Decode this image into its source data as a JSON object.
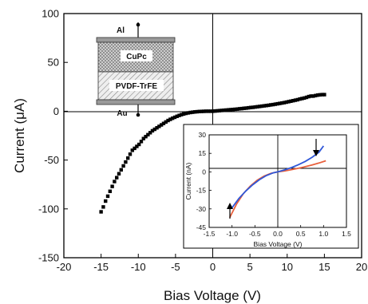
{
  "chart_data": [
    {
      "type": "scatter",
      "xlabel": "Bias Voltage (V)",
      "ylabel": "Current (μA)",
      "xlim": [
        -20,
        20
      ],
      "ylim": [
        -150,
        100
      ],
      "xticks": [
        "-20",
        "-15",
        "-10",
        "-5",
        "0",
        "5",
        "10",
        "15",
        "20"
      ],
      "yticks": [
        "100",
        "50",
        "0",
        "-50",
        "-100",
        "-150"
      ],
      "series": [
        {
          "marker": "square",
          "color": "#000000",
          "points": [
            [
              -15,
              -103
            ],
            [
              -14.7,
              -98
            ],
            [
              -14.4,
              -92
            ],
            [
              -14.1,
              -87
            ],
            [
              -13.8,
              -82
            ],
            [
              -13.5,
              -77
            ],
            [
              -13.2,
              -72
            ],
            [
              -12.9,
              -68
            ],
            [
              -12.6,
              -64
            ],
            [
              -12.3,
              -60
            ],
            [
              -12,
              -56
            ],
            [
              -11.7,
              -52
            ],
            [
              -11.4,
              -48
            ],
            [
              -11.1,
              -44
            ],
            [
              -10.8,
              -40
            ],
            [
              -10.5,
              -38
            ],
            [
              -10.2,
              -36
            ],
            [
              -9.9,
              -34
            ],
            [
              -9.6,
              -31
            ],
            [
              -9.3,
              -28
            ],
            [
              -9,
              -26
            ],
            [
              -8.7,
              -24
            ],
            [
              -8.4,
              -22
            ],
            [
              -8.1,
              -20
            ],
            [
              -7.8,
              -18.5
            ],
            [
              -7.5,
              -17
            ],
            [
              -7.2,
              -15.5
            ],
            [
              -6.9,
              -14
            ],
            [
              -6.6,
              -12.5
            ],
            [
              -6.3,
              -11
            ],
            [
              -6,
              -9.5
            ],
            [
              -5.7,
              -8.3
            ],
            [
              -5.4,
              -7.2
            ],
            [
              -5.1,
              -6.2
            ],
            [
              -4.8,
              -5.2
            ],
            [
              -4.5,
              -4.3
            ],
            [
              -4.2,
              -3.5
            ],
            [
              -3.9,
              -2.8
            ],
            [
              -3.6,
              -2.2
            ],
            [
              -3.3,
              -1.7
            ],
            [
              -3,
              -1.3
            ],
            [
              -2.7,
              -1
            ],
            [
              -2.4,
              -0.7
            ],
            [
              -2.1,
              -0.5
            ],
            [
              -1.8,
              -0.3
            ],
            [
              -1.5,
              -0.2
            ],
            [
              -1.2,
              -0.1
            ],
            [
              -0.9,
              0
            ],
            [
              -0.6,
              0
            ],
            [
              -0.3,
              0
            ],
            [
              0,
              0
            ],
            [
              0.3,
              0.2
            ],
            [
              0.6,
              0.4
            ],
            [
              0.9,
              0.6
            ],
            [
              1.2,
              0.8
            ],
            [
              1.5,
              1
            ],
            [
              1.8,
              1.2
            ],
            [
              2.1,
              1.4
            ],
            [
              2.4,
              1.6
            ],
            [
              2.7,
              1.8
            ],
            [
              3,
              2
            ],
            [
              3.3,
              2.2
            ],
            [
              3.6,
              2.5
            ],
            [
              3.9,
              2.7
            ],
            [
              4.2,
              3
            ],
            [
              4.5,
              3.2
            ],
            [
              4.8,
              3.5
            ],
            [
              5.1,
              3.8
            ],
            [
              5.4,
              4
            ],
            [
              5.7,
              4.3
            ],
            [
              6,
              4.6
            ],
            [
              6.3,
              4.9
            ],
            [
              6.6,
              5.2
            ],
            [
              6.9,
              5.5
            ],
            [
              7.2,
              5.8
            ],
            [
              7.5,
              6.1
            ],
            [
              7.8,
              6.5
            ],
            [
              8.1,
              6.8
            ],
            [
              8.4,
              7.2
            ],
            [
              8.7,
              7.6
            ],
            [
              9,
              8
            ],
            [
              9.3,
              8.4
            ],
            [
              9.6,
              8.8
            ],
            [
              9.9,
              9.3
            ],
            [
              10.2,
              9.8
            ],
            [
              10.5,
              10.3
            ],
            [
              10.8,
              10.8
            ],
            [
              11.1,
              11.3
            ],
            [
              11.4,
              11.8
            ],
            [
              11.7,
              12.5
            ],
            [
              12,
              13
            ],
            [
              12.3,
              13.5
            ],
            [
              12.6,
              14.2
            ],
            [
              12.9,
              15
            ],
            [
              13.2,
              15.5
            ],
            [
              13.5,
              15.5
            ],
            [
              13.8,
              16
            ],
            [
              14.1,
              16.5
            ],
            [
              14.4,
              16.8
            ],
            [
              14.7,
              17
            ],
            [
              15,
              17
            ]
          ]
        }
      ],
      "annotations": [
        "Al",
        "CuPc",
        "PVDF-TrFE",
        "Au"
      ]
    },
    {
      "type": "line",
      "xlabel": "Bias Voltage (V)",
      "ylabel": "Current (nA)",
      "xlim": [
        -1.5,
        1.5
      ],
      "ylim": [
        -45,
        30
      ],
      "xticks": [
        "-1.5",
        "-1.0",
        "-0.5",
        "0.0",
        "0.5",
        "1.0",
        "1.5"
      ],
      "yticks": [
        "30",
        "15",
        "0",
        "-15",
        "-30",
        "-45"
      ],
      "series": [
        {
          "color": "#e8603c",
          "points": [
            [
              -1.05,
              -37
            ],
            [
              -0.9,
              -26
            ],
            [
              -0.75,
              -17.5
            ],
            [
              -0.6,
              -11.5
            ],
            [
              -0.45,
              -6.8
            ],
            [
              -0.3,
              -3.4
            ],
            [
              -0.15,
              -1.2
            ],
            [
              0,
              0
            ],
            [
              0.15,
              0.8
            ],
            [
              0.3,
              1.8
            ],
            [
              0.45,
              2.9
            ],
            [
              0.6,
              4.2
            ],
            [
              0.75,
              5.6
            ],
            [
              0.9,
              7.2
            ],
            [
              1.05,
              9
            ]
          ]
        },
        {
          "color": "#2f57d8",
          "points": [
            [
              -1.0,
              -29
            ],
            [
              -0.85,
              -21.5
            ],
            [
              -0.7,
              -15.5
            ],
            [
              -0.55,
              -10.5
            ],
            [
              -0.4,
              -6.3
            ],
            [
              -0.25,
              -3
            ],
            [
              -0.1,
              -0.8
            ],
            [
              0,
              0
            ],
            [
              0.15,
              1.6
            ],
            [
              0.3,
              3.5
            ],
            [
              0.45,
              5.8
            ],
            [
              0.6,
              8.5
            ],
            [
              0.75,
              11.8
            ],
            [
              0.9,
              16
            ],
            [
              1.0,
              21
            ]
          ]
        }
      ]
    }
  ]
}
